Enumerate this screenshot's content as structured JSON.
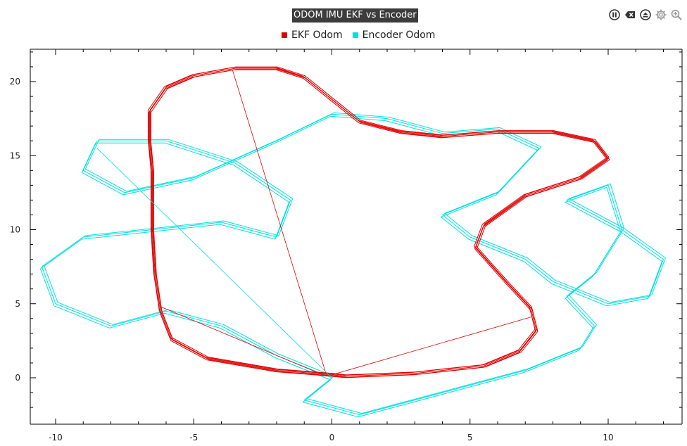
{
  "window": {
    "title": "ODOM IMU EKF vs Encoder"
  },
  "toolbar": {
    "icons": [
      "pause-icon",
      "clear-icon",
      "eject-icon",
      "gear-icon",
      "zoom-icon"
    ]
  },
  "chart_data": {
    "type": "line",
    "title": "ODOM IMU EKF vs Encoder",
    "xlabel": "",
    "ylabel": "",
    "xlim": [
      -10.8,
      12.2
    ],
    "ylim": [
      -3.0,
      22.5
    ],
    "x_ticks": [
      -10,
      -5,
      0,
      5,
      10
    ],
    "y_ticks": [
      0,
      5,
      10,
      15,
      20
    ],
    "grid": false,
    "legend_position": "top-center",
    "series": [
      {
        "name": "EKF Odom",
        "color": "#e00000",
        "points": [
          [
            0,
            0.2
          ],
          [
            -2,
            0.5
          ],
          [
            -4.5,
            1.3
          ],
          [
            -5.8,
            2.6
          ],
          [
            -6.2,
            4.5
          ],
          [
            -6.4,
            7
          ],
          [
            -6.5,
            10
          ],
          [
            -6.5,
            12
          ],
          [
            -6.5,
            14
          ],
          [
            -6.6,
            16
          ],
          [
            -6.6,
            18
          ],
          [
            -6.0,
            19.6
          ],
          [
            -5,
            20.4
          ],
          [
            -3.5,
            20.9
          ],
          [
            -2,
            20.9
          ],
          [
            -1,
            20.3
          ],
          [
            0,
            18.8
          ],
          [
            1,
            17.3
          ],
          [
            2.5,
            16.6
          ],
          [
            4,
            16.3
          ],
          [
            6,
            16.6
          ],
          [
            8,
            16.6
          ],
          [
            9.5,
            16.0
          ],
          [
            10,
            14.8
          ],
          [
            9,
            13.5
          ],
          [
            7,
            12.3
          ],
          [
            5.5,
            10.3
          ],
          [
            5.2,
            8.8
          ],
          [
            6.3,
            6.5
          ],
          [
            7.2,
            4.7
          ],
          [
            7.4,
            3.2
          ],
          [
            6.8,
            1.8
          ],
          [
            5.5,
            0.8
          ],
          [
            3,
            0.3
          ],
          [
            0.5,
            0.1
          ],
          [
            0,
            0.2
          ]
        ]
      },
      {
        "name": "Encoder Odom",
        "color": "#00e0e0",
        "points": [
          [
            0,
            0
          ],
          [
            -2,
            1.5
          ],
          [
            -4,
            3.5
          ],
          [
            -6,
            4.5
          ],
          [
            -8,
            3.5
          ],
          [
            -10,
            5
          ],
          [
            -10.5,
            7.5
          ],
          [
            -9,
            9.5
          ],
          [
            -6.5,
            10
          ],
          [
            -4,
            10.5
          ],
          [
            -2,
            9.5
          ],
          [
            -1.5,
            12
          ],
          [
            -3.5,
            14.5
          ],
          [
            -6,
            16
          ],
          [
            -8.5,
            16
          ],
          [
            -9,
            14
          ],
          [
            -7.5,
            12.5
          ],
          [
            -5,
            13.5
          ],
          [
            -2,
            16
          ],
          [
            0,
            17.8
          ],
          [
            2,
            17.5
          ],
          [
            4,
            16.5
          ],
          [
            6,
            16.8
          ],
          [
            7.5,
            15.5
          ],
          [
            6,
            12.5
          ],
          [
            4,
            11
          ],
          [
            5,
            9.5
          ],
          [
            7,
            8
          ],
          [
            8,
            6.5
          ],
          [
            10,
            5
          ],
          [
            11.5,
            5.5
          ],
          [
            12,
            8
          ],
          [
            10.5,
            10
          ],
          [
            8.5,
            12
          ],
          [
            10,
            13
          ],
          [
            10.5,
            10
          ],
          [
            9.5,
            7
          ],
          [
            8.5,
            5.5
          ],
          [
            9.5,
            3.5
          ],
          [
            9,
            2
          ],
          [
            7,
            0.5
          ],
          [
            5,
            -0.5
          ],
          [
            3,
            -1.5
          ],
          [
            1,
            -2.5
          ],
          [
            -1,
            -1.5
          ],
          [
            0,
            0
          ]
        ]
      }
    ],
    "connector_lines": [
      {
        "color": "#e00000",
        "points": [
          [
            -3.6,
            20.8
          ],
          [
            -0.2,
            0.2
          ]
        ]
      },
      {
        "color": "#e00000",
        "points": [
          [
            -6.2,
            4.8
          ],
          [
            -0.2,
            0.1
          ]
        ]
      },
      {
        "color": "#e00000",
        "points": [
          [
            0,
            0.2
          ],
          [
            7.2,
            4.1
          ]
        ]
      },
      {
        "color": "#00e0e0",
        "points": [
          [
            -8.5,
            15.5
          ],
          [
            0,
            0
          ]
        ]
      }
    ]
  }
}
